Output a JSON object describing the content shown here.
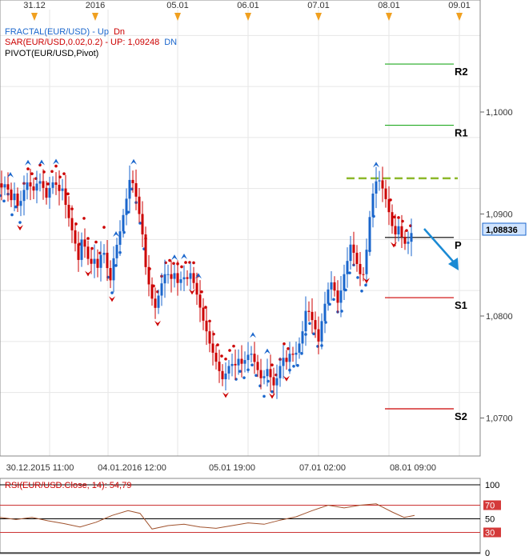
{
  "chart_data": {
    "type": "candlestick",
    "symbol": "EUR/USD",
    "date_labels_top": [
      "31.12",
      "2016",
      "05.01",
      "06.01",
      "07.01",
      "08.01",
      "09.01"
    ],
    "time_labels_bottom": [
      "30.12.2015 11:00",
      "04.01.2016 12:00",
      "05.01 19:00",
      "07.01 02:00",
      "08.01 09:00"
    ],
    "ylim": [
      1.0665,
      1.1105
    ],
    "yticks": [
      {
        "value": 1.1,
        "label": "1,1000"
      },
      {
        "value": 1.09,
        "label": "1,0900"
      },
      {
        "value": 1.08,
        "label": "1,0800"
      },
      {
        "value": 1.07,
        "label": "1,0700"
      }
    ],
    "last_price": {
      "value": 1.08836,
      "label": "1,08836"
    },
    "indicators": {
      "fractal": {
        "label": "FRACTAL(EUR/USD)",
        "sep": " - ",
        "up": "Up",
        "dn": "Dn",
        "up_color": "#1a66cc",
        "dn_color": "#cc0000"
      },
      "sar": {
        "label": "SAR(EUR/USD,0.02,0.2)",
        "sep": " - ",
        "up": "UP: 1,09248",
        "dn": "DN",
        "up_color": "#cc0000",
        "dn_color": "#1a66cc"
      },
      "pivot": {
        "label": "PIVOT(EUR/USD,Pivot)"
      }
    },
    "pivot_levels": [
      {
        "name": "R2",
        "value": 1.1047,
        "color": "#22aa22"
      },
      {
        "name": "R1",
        "value": 1.0987,
        "color": "#22aa22"
      },
      {
        "name": "P",
        "value": 1.0877,
        "color": "#000000"
      },
      {
        "name": "S1",
        "value": 1.0818,
        "color": "#cc0000"
      },
      {
        "name": "S2",
        "value": 1.0709,
        "color": "#cc0000"
      }
    ],
    "resistance_dashed": {
      "value": 1.0935,
      "color": "#8db82a"
    },
    "price_path": [
      {
        "x": 0,
        "y": 1.093
      },
      {
        "x": 5,
        "y": 1.0925
      },
      {
        "x": 10,
        "y": 1.0932
      },
      {
        "x": 15,
        "y": 1.0912
      },
      {
        "x": 20,
        "y": 1.092
      },
      {
        "x": 25,
        "y": 1.0905
      },
      {
        "x": 30,
        "y": 1.0918
      },
      {
        "x": 35,
        "y": 1.0932
      },
      {
        "x": 40,
        "y": 1.0927
      },
      {
        "x": 45,
        "y": 1.0922
      },
      {
        "x": 50,
        "y": 1.0935
      },
      {
        "x": 55,
        "y": 1.0928
      },
      {
        "x": 60,
        "y": 1.0916
      },
      {
        "x": 65,
        "y": 1.0928
      },
      {
        "x": 70,
        "y": 1.0933
      },
      {
        "x": 75,
        "y": 1.0922
      },
      {
        "x": 80,
        "y": 1.0925
      },
      {
        "x": 85,
        "y": 1.0905
      },
      {
        "x": 90,
        "y": 1.089
      },
      {
        "x": 95,
        "y": 1.0875
      },
      {
        "x": 100,
        "y": 1.0855
      },
      {
        "x": 105,
        "y": 1.088
      },
      {
        "x": 110,
        "y": 1.086
      },
      {
        "x": 115,
        "y": 1.085
      },
      {
        "x": 120,
        "y": 1.0856
      },
      {
        "x": 125,
        "y": 1.0845
      },
      {
        "x": 130,
        "y": 1.087
      },
      {
        "x": 135,
        "y": 1.085
      },
      {
        "x": 140,
        "y": 1.0835
      },
      {
        "x": 145,
        "y": 1.0862
      },
      {
        "x": 150,
        "y": 1.0875
      },
      {
        "x": 155,
        "y": 1.0895
      },
      {
        "x": 160,
        "y": 1.0915
      },
      {
        "x": 165,
        "y": 1.0938
      },
      {
        "x": 170,
        "y": 1.0925
      },
      {
        "x": 175,
        "y": 1.0905
      },
      {
        "x": 180,
        "y": 1.088
      },
      {
        "x": 185,
        "y": 1.084
      },
      {
        "x": 190,
        "y": 1.0825
      },
      {
        "x": 195,
        "y": 1.0805
      },
      {
        "x": 200,
        "y": 1.082
      },
      {
        "x": 205,
        "y": 1.0835
      },
      {
        "x": 210,
        "y": 1.0845
      },
      {
        "x": 215,
        "y": 1.0835
      },
      {
        "x": 220,
        "y": 1.0842
      },
      {
        "x": 225,
        "y": 1.083
      },
      {
        "x": 230,
        "y": 1.084
      },
      {
        "x": 235,
        "y": 1.0835
      },
      {
        "x": 240,
        "y": 1.0842
      },
      {
        "x": 245,
        "y": 1.083
      },
      {
        "x": 250,
        "y": 1.0815
      },
      {
        "x": 255,
        "y": 1.0798
      },
      {
        "x": 260,
        "y": 1.0785
      },
      {
        "x": 265,
        "y": 1.077
      },
      {
        "x": 270,
        "y": 1.076
      },
      {
        "x": 275,
        "y": 1.0748
      },
      {
        "x": 280,
        "y": 1.0738
      },
      {
        "x": 285,
        "y": 1.0745
      },
      {
        "x": 290,
        "y": 1.0755
      },
      {
        "x": 295,
        "y": 1.075
      },
      {
        "x": 300,
        "y": 1.0758
      },
      {
        "x": 305,
        "y": 1.0752
      },
      {
        "x": 310,
        "y": 1.076
      },
      {
        "x": 315,
        "y": 1.0765
      },
      {
        "x": 320,
        "y": 1.0755
      },
      {
        "x": 325,
        "y": 1.0745
      },
      {
        "x": 330,
        "y": 1.0735
      },
      {
        "x": 335,
        "y": 1.075
      },
      {
        "x": 340,
        "y": 1.074
      },
      {
        "x": 345,
        "y": 1.073
      },
      {
        "x": 350,
        "y": 1.0745
      },
      {
        "x": 355,
        "y": 1.076
      },
      {
        "x": 360,
        "y": 1.0755
      },
      {
        "x": 365,
        "y": 1.0765
      },
      {
        "x": 370,
        "y": 1.076
      },
      {
        "x": 375,
        "y": 1.077
      },
      {
        "x": 380,
        "y": 1.0785
      },
      {
        "x": 385,
        "y": 1.081
      },
      {
        "x": 390,
        "y": 1.08
      },
      {
        "x": 395,
        "y": 1.079
      },
      {
        "x": 400,
        "y": 1.0775
      },
      {
        "x": 405,
        "y": 1.08
      },
      {
        "x": 410,
        "y": 1.082
      },
      {
        "x": 415,
        "y": 1.0835
      },
      {
        "x": 420,
        "y": 1.0825
      },
      {
        "x": 425,
        "y": 1.081
      },
      {
        "x": 430,
        "y": 1.0835
      },
      {
        "x": 435,
        "y": 1.085
      },
      {
        "x": 440,
        "y": 1.087
      },
      {
        "x": 445,
        "y": 1.086
      },
      {
        "x": 450,
        "y": 1.0845
      },
      {
        "x": 455,
        "y": 1.0835
      },
      {
        "x": 460,
        "y": 1.0865
      },
      {
        "x": 465,
        "y": 1.0905
      },
      {
        "x": 470,
        "y": 1.093
      },
      {
        "x": 475,
        "y": 1.0935
      },
      {
        "x": 480,
        "y": 1.0925
      },
      {
        "x": 485,
        "y": 1.0912
      },
      {
        "x": 490,
        "y": 1.0895
      },
      {
        "x": 495,
        "y": 1.0878
      },
      {
        "x": 500,
        "y": 1.0888
      },
      {
        "x": 505,
        "y": 1.0875
      },
      {
        "x": 510,
        "y": 1.0868
      },
      {
        "x": 515,
        "y": 1.088
      },
      {
        "x": 518,
        "y": 1.0884
      }
    ],
    "rsi": {
      "label": "RSI(EUR/USD.Close, 14): 54,79",
      "levels": [
        {
          "value": 100,
          "label": "100"
        },
        {
          "value": 70,
          "label": "70"
        },
        {
          "value": 50,
          "label": "50"
        },
        {
          "value": 30,
          "label": "30"
        },
        {
          "value": 0,
          "label": "0"
        }
      ],
      "path": [
        {
          "x": 0,
          "y": 52
        },
        {
          "x": 20,
          "y": 49
        },
        {
          "x": 40,
          "y": 52
        },
        {
          "x": 60,
          "y": 47
        },
        {
          "x": 80,
          "y": 43
        },
        {
          "x": 100,
          "y": 38
        },
        {
          "x": 120,
          "y": 45
        },
        {
          "x": 140,
          "y": 55
        },
        {
          "x": 160,
          "y": 62
        },
        {
          "x": 175,
          "y": 58
        },
        {
          "x": 190,
          "y": 35
        },
        {
          "x": 210,
          "y": 40
        },
        {
          "x": 230,
          "y": 42
        },
        {
          "x": 250,
          "y": 38
        },
        {
          "x": 270,
          "y": 36
        },
        {
          "x": 290,
          "y": 40
        },
        {
          "x": 310,
          "y": 44
        },
        {
          "x": 330,
          "y": 42
        },
        {
          "x": 350,
          "y": 48
        },
        {
          "x": 370,
          "y": 53
        },
        {
          "x": 390,
          "y": 62
        },
        {
          "x": 410,
          "y": 70
        },
        {
          "x": 430,
          "y": 66
        },
        {
          "x": 450,
          "y": 70
        },
        {
          "x": 470,
          "y": 72
        },
        {
          "x": 490,
          "y": 60
        },
        {
          "x": 505,
          "y": 52
        },
        {
          "x": 518,
          "y": 55
        }
      ]
    },
    "forecast_arrow_color": "#1a8ad4"
  }
}
